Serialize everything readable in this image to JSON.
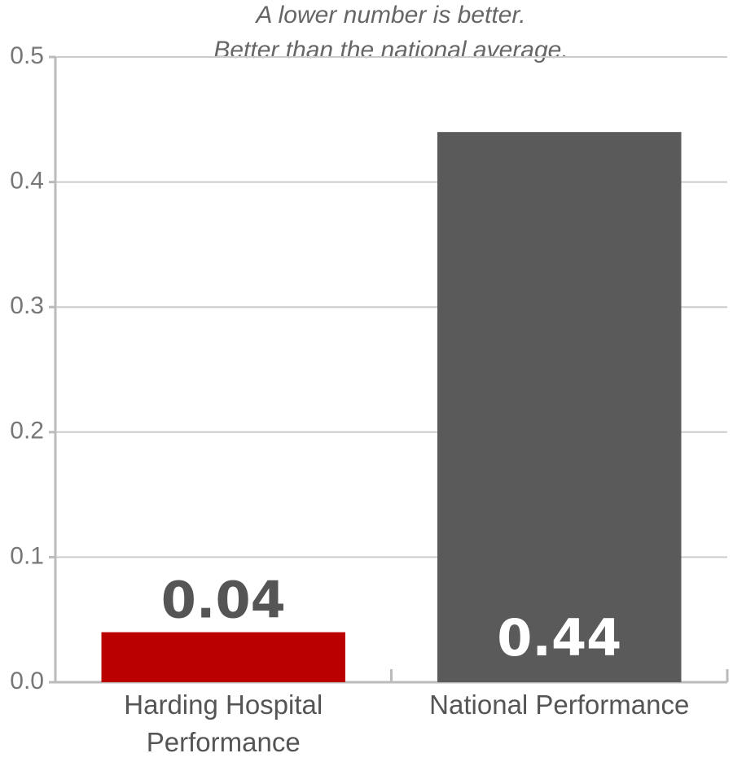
{
  "chart_data": {
    "type": "bar",
    "title": "A lower number is better.",
    "subtitle": "Better than the national average.",
    "categories": [
      "Harding Hospital Performance",
      "National Performance"
    ],
    "values": [
      0.04,
      0.44
    ],
    "colors": [
      "#bb0000",
      "#5a5a5a"
    ],
    "ylim": [
      0,
      0.5
    ],
    "yticks": [
      {
        "value": 0,
        "label": "0.0"
      },
      0.1,
      0.2,
      0.3,
      0.4,
      0.5
    ],
    "grid": true
  }
}
